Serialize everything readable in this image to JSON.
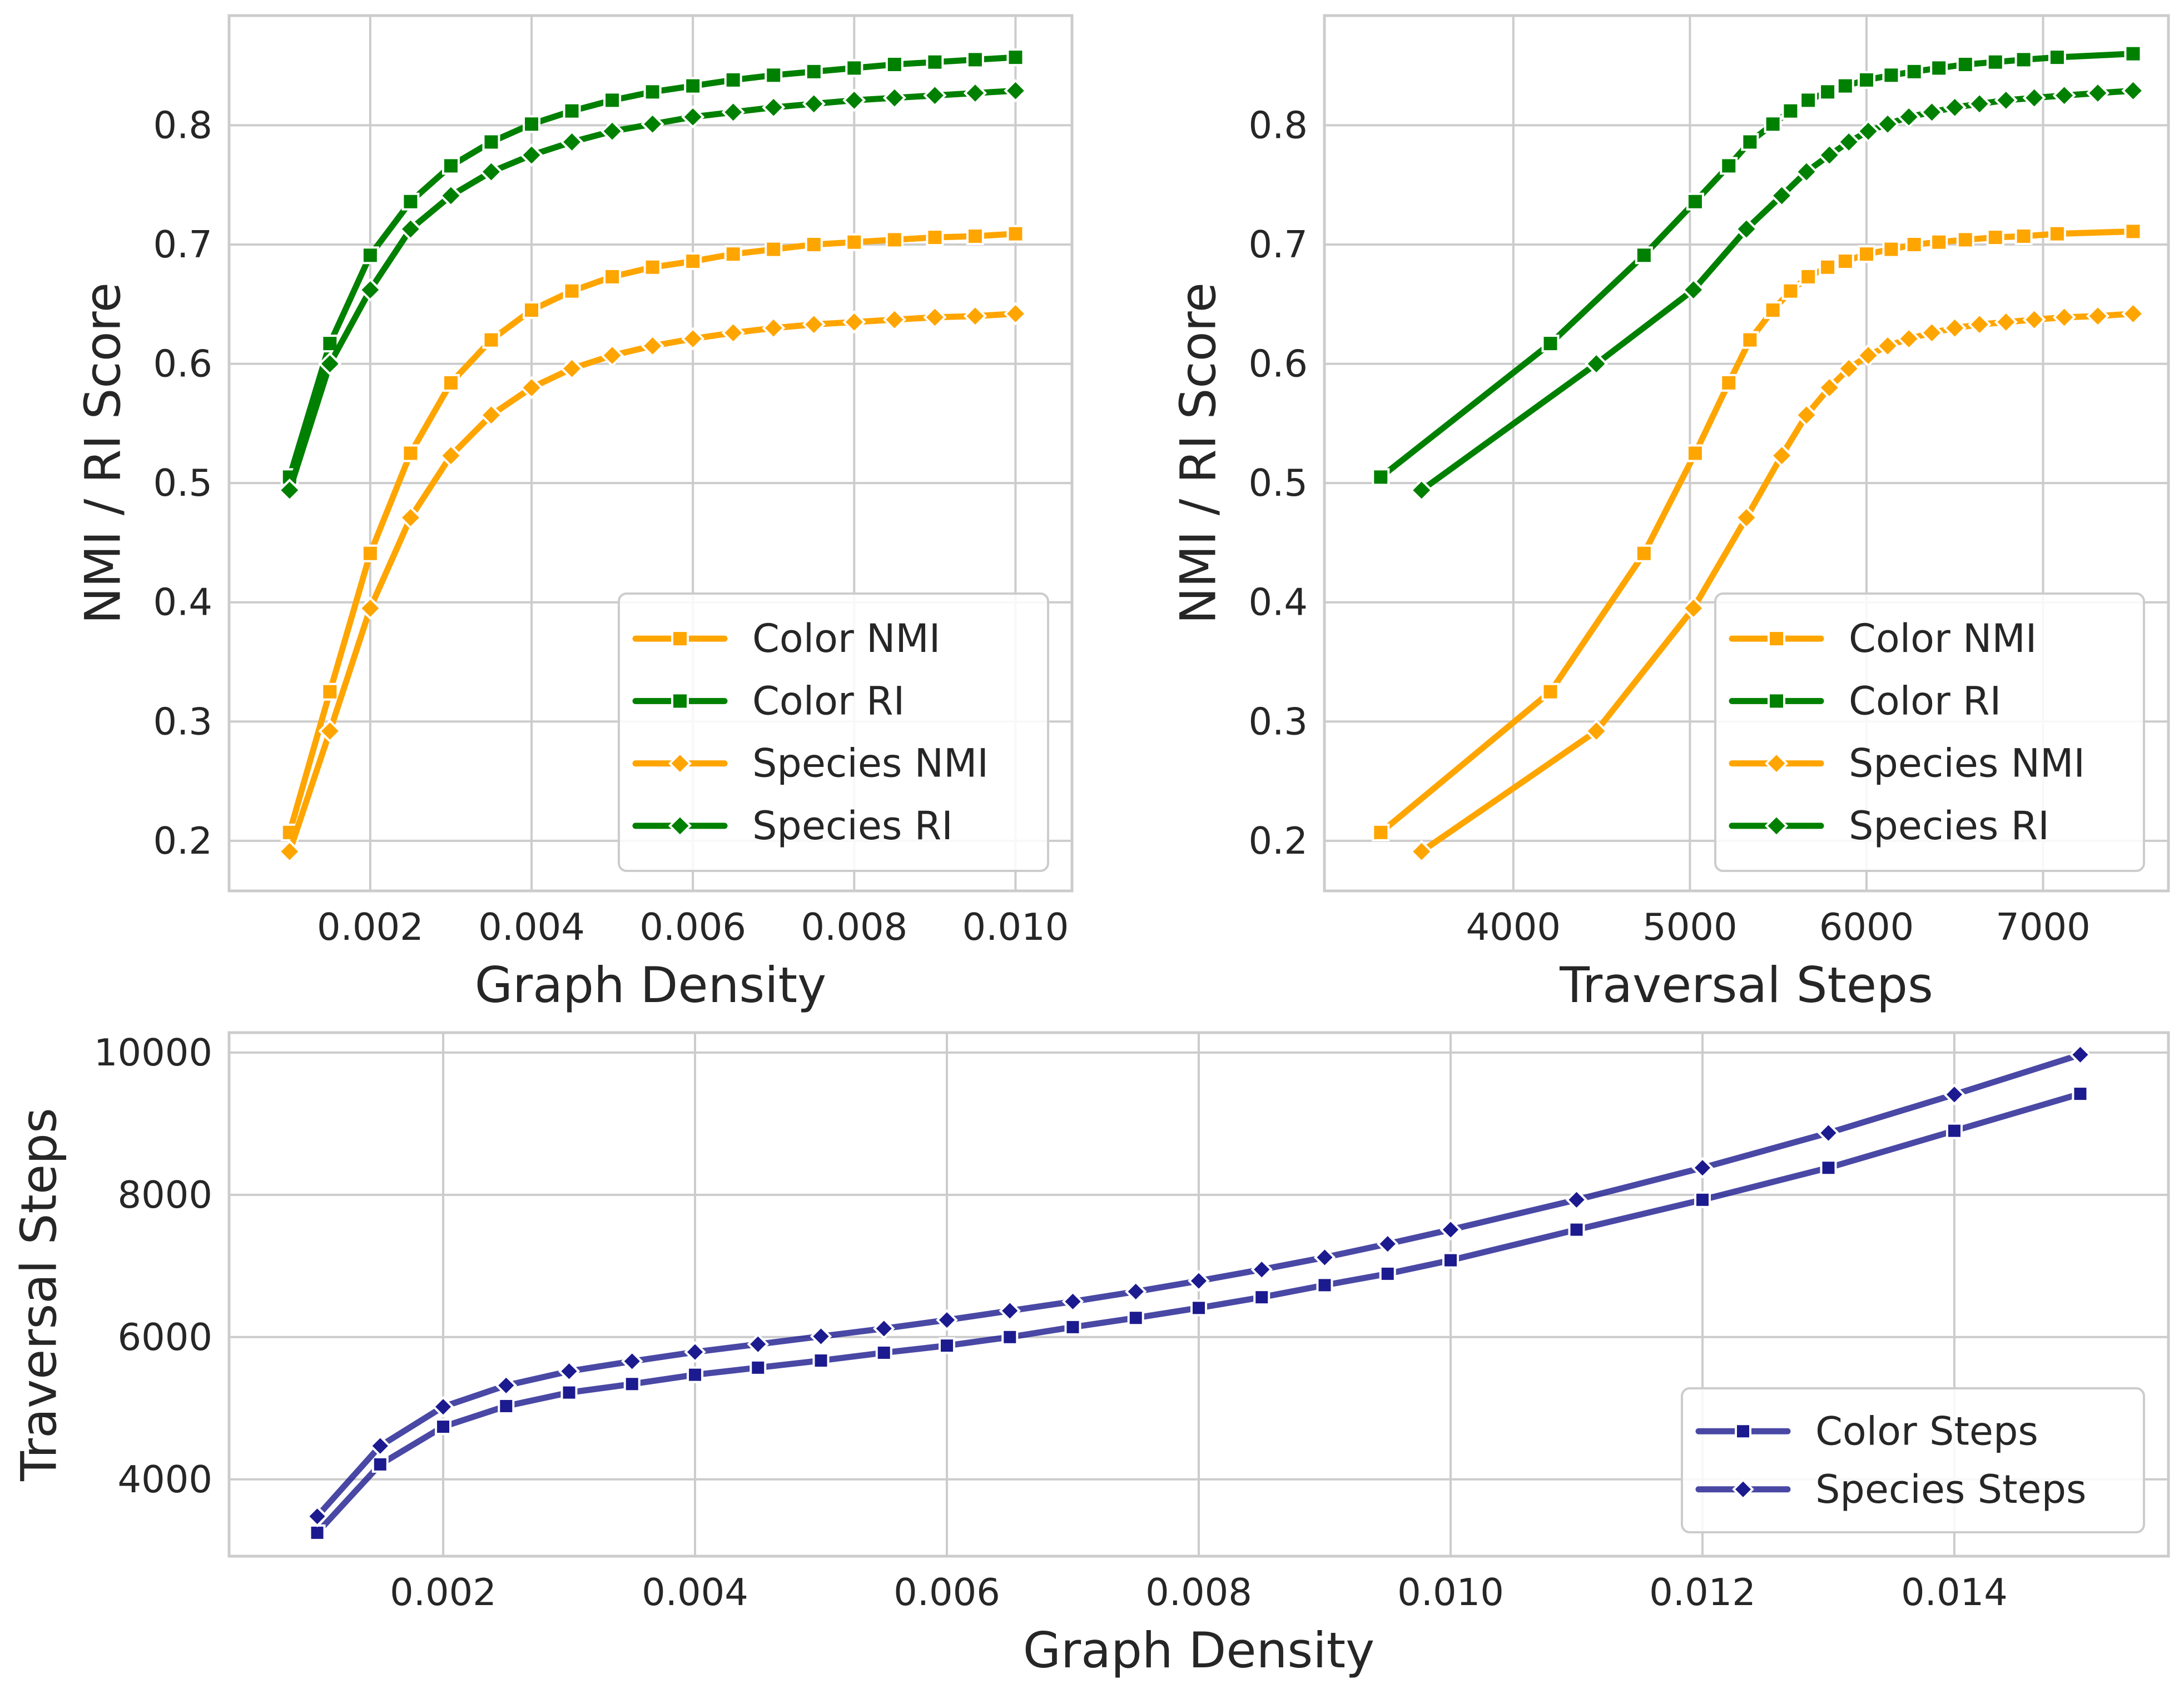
{
  "chart_data": [
    {
      "id": "top-left",
      "type": "line",
      "xlabel": "Graph Density",
      "ylabel": "NMI / RI Score",
      "xlim": [
        0.00025,
        0.0107
      ],
      "ylim": [
        0.158,
        0.892
      ],
      "xticks": [
        0.002,
        0.004,
        0.006,
        0.008,
        0.01
      ],
      "xtick_labels": [
        "0.002",
        "0.004",
        "0.006",
        "0.008",
        "0.010"
      ],
      "yticks": [
        0.2,
        0.3,
        0.4,
        0.5,
        0.6,
        0.7,
        0.8
      ],
      "ytick_labels": [
        "0.2",
        "0.3",
        "0.4",
        "0.5",
        "0.6",
        "0.7",
        "0.8"
      ],
      "grid": true,
      "legend_position": "lower-right",
      "series": [
        {
          "name": "Color NMI",
          "color": "#ffa500",
          "marker": "square",
          "x": [
            0.001,
            0.0015,
            0.002,
            0.0025,
            0.003,
            0.0035,
            0.004,
            0.0045,
            0.005,
            0.0055,
            0.006,
            0.0065,
            0.007,
            0.0075,
            0.008,
            0.0085,
            0.009,
            0.0095,
            0.01
          ],
          "y": [
            0.207,
            0.325,
            0.441,
            0.525,
            0.584,
            0.62,
            0.645,
            0.661,
            0.673,
            0.681,
            0.686,
            0.692,
            0.696,
            0.7,
            0.702,
            0.704,
            0.706,
            0.707,
            0.709
          ]
        },
        {
          "name": "Color RI",
          "color": "#008000",
          "marker": "square",
          "x": [
            0.001,
            0.0015,
            0.002,
            0.0025,
            0.003,
            0.0035,
            0.004,
            0.0045,
            0.005,
            0.0055,
            0.006,
            0.0065,
            0.007,
            0.0075,
            0.008,
            0.0085,
            0.009,
            0.0095,
            0.01
          ],
          "y": [
            0.505,
            0.617,
            0.691,
            0.736,
            0.766,
            0.786,
            0.801,
            0.812,
            0.821,
            0.828,
            0.833,
            0.838,
            0.842,
            0.845,
            0.848,
            0.851,
            0.853,
            0.855,
            0.857
          ]
        },
        {
          "name": "Species NMI",
          "color": "#ffa500",
          "marker": "diamond",
          "x": [
            0.001,
            0.0015,
            0.002,
            0.0025,
            0.003,
            0.0035,
            0.004,
            0.0045,
            0.005,
            0.0055,
            0.006,
            0.0065,
            0.007,
            0.0075,
            0.008,
            0.0085,
            0.009,
            0.0095,
            0.01
          ],
          "y": [
            0.191,
            0.292,
            0.395,
            0.471,
            0.523,
            0.557,
            0.58,
            0.596,
            0.607,
            0.615,
            0.621,
            0.626,
            0.63,
            0.633,
            0.635,
            0.637,
            0.639,
            0.64,
            0.642
          ]
        },
        {
          "name": "Species RI",
          "color": "#008000",
          "marker": "diamond",
          "x": [
            0.001,
            0.0015,
            0.002,
            0.0025,
            0.003,
            0.0035,
            0.004,
            0.0045,
            0.005,
            0.0055,
            0.006,
            0.0065,
            0.007,
            0.0075,
            0.008,
            0.0085,
            0.009,
            0.0095,
            0.01
          ],
          "y": [
            0.494,
            0.6,
            0.662,
            0.713,
            0.741,
            0.761,
            0.775,
            0.786,
            0.795,
            0.801,
            0.807,
            0.811,
            0.815,
            0.818,
            0.821,
            0.823,
            0.825,
            0.827,
            0.829
          ]
        }
      ]
    },
    {
      "id": "top-right",
      "type": "line",
      "xlabel": "Traversal Steps",
      "ylabel": "NMI / RI Score",
      "xlim": [
        2930,
        7710
      ],
      "ylim": [
        0.158,
        0.892
      ],
      "xticks": [
        4000,
        5000,
        6000,
        7000
      ],
      "xtick_labels": [
        "4000",
        "5000",
        "6000",
        "7000"
      ],
      "yticks": [
        0.2,
        0.3,
        0.4,
        0.5,
        0.6,
        0.7,
        0.8
      ],
      "ytick_labels": [
        "0.2",
        "0.3",
        "0.4",
        "0.5",
        "0.6",
        "0.7",
        "0.8"
      ],
      "grid": true,
      "legend_position": "lower-right",
      "series": [
        {
          "name": "Color NMI",
          "color": "#ffa500",
          "marker": "square",
          "x": [
            3249,
            4210,
            4740,
            5030,
            5220,
            5340,
            5470,
            5570,
            5670,
            5780,
            5880,
            6000,
            6140,
            6270,
            6410,
            6560,
            6730,
            6890,
            7080,
            7510
          ],
          "y": [
            0.207,
            0.325,
            0.441,
            0.525,
            0.584,
            0.62,
            0.645,
            0.661,
            0.673,
            0.681,
            0.686,
            0.692,
            0.696,
            0.7,
            0.702,
            0.704,
            0.706,
            0.707,
            0.709,
            0.711
          ]
        },
        {
          "name": "Color RI",
          "color": "#008000",
          "marker": "square",
          "x": [
            3249,
            4210,
            4740,
            5030,
            5220,
            5340,
            5470,
            5570,
            5670,
            5780,
            5880,
            6000,
            6140,
            6270,
            6410,
            6560,
            6730,
            6890,
            7080,
            7510
          ],
          "y": [
            0.505,
            0.617,
            0.691,
            0.736,
            0.766,
            0.786,
            0.801,
            0.812,
            0.821,
            0.828,
            0.833,
            0.838,
            0.842,
            0.845,
            0.848,
            0.851,
            0.853,
            0.855,
            0.857,
            0.86
          ]
        },
        {
          "name": "Species NMI",
          "color": "#ffa500",
          "marker": "diamond",
          "x": [
            3480,
            4470,
            5020,
            5320,
            5520,
            5660,
            5790,
            5900,
            6010,
            6120,
            6240,
            6370,
            6500,
            6640,
            6790,
            6950,
            7120,
            7310,
            7510
          ],
          "y": [
            0.191,
            0.292,
            0.395,
            0.471,
            0.523,
            0.557,
            0.58,
            0.596,
            0.607,
            0.615,
            0.621,
            0.626,
            0.63,
            0.633,
            0.635,
            0.637,
            0.639,
            0.64,
            0.642
          ]
        },
        {
          "name": "Species RI",
          "color": "#008000",
          "marker": "diamond",
          "x": [
            3480,
            4470,
            5020,
            5320,
            5520,
            5660,
            5790,
            5900,
            6010,
            6120,
            6240,
            6370,
            6500,
            6640,
            6790,
            6950,
            7120,
            7310,
            7510
          ],
          "y": [
            0.494,
            0.6,
            0.662,
            0.713,
            0.741,
            0.761,
            0.775,
            0.786,
            0.795,
            0.801,
            0.807,
            0.811,
            0.815,
            0.818,
            0.821,
            0.823,
            0.825,
            0.827,
            0.829
          ]
        }
      ]
    },
    {
      "id": "bottom",
      "type": "line",
      "xlabel": "Graph Density",
      "ylabel": "Traversal Steps",
      "xlim": [
        0.0003,
        0.0157
      ],
      "ylim": [
        2920,
        10280
      ],
      "xticks": [
        0.002,
        0.004,
        0.006,
        0.008,
        0.01,
        0.012,
        0.014
      ],
      "xtick_labels": [
        "0.002",
        "0.004",
        "0.006",
        "0.008",
        "0.010",
        "0.012",
        "0.014"
      ],
      "yticks": [
        4000,
        6000,
        8000,
        10000
      ],
      "ytick_labels": [
        "4000",
        "6000",
        "8000",
        "10000"
      ],
      "grid": true,
      "legend_position": "lower-right",
      "series": [
        {
          "name": "Color Steps",
          "color": "#1c1a8f",
          "marker": "square",
          "x": [
            0.001,
            0.0015,
            0.002,
            0.0025,
            0.003,
            0.0035,
            0.004,
            0.0045,
            0.005,
            0.0055,
            0.006,
            0.0065,
            0.007,
            0.0075,
            0.008,
            0.0085,
            0.009,
            0.0095,
            0.01,
            0.011,
            0.012,
            0.013,
            0.014,
            0.015
          ],
          "y": [
            3249,
            4210,
            4740,
            5030,
            5220,
            5340,
            5470,
            5570,
            5670,
            5780,
            5880,
            6000,
            6140,
            6270,
            6410,
            6560,
            6730,
            6890,
            7080,
            7510,
            7930,
            8380,
            8900,
            9420
          ]
        },
        {
          "name": "Species Steps",
          "color": "#1c1a8f",
          "marker": "diamond",
          "x": [
            0.001,
            0.0015,
            0.002,
            0.0025,
            0.003,
            0.0035,
            0.004,
            0.0045,
            0.005,
            0.0055,
            0.006,
            0.0065,
            0.007,
            0.0075,
            0.008,
            0.0085,
            0.009,
            0.0095,
            0.01,
            0.011,
            0.012,
            0.013,
            0.014,
            0.015
          ],
          "y": [
            3480,
            4470,
            5020,
            5320,
            5520,
            5660,
            5790,
            5900,
            6010,
            6120,
            6240,
            6370,
            6500,
            6640,
            6790,
            6950,
            7120,
            7310,
            7510,
            7930,
            8380,
            8870,
            9410,
            9970
          ]
        }
      ]
    }
  ]
}
